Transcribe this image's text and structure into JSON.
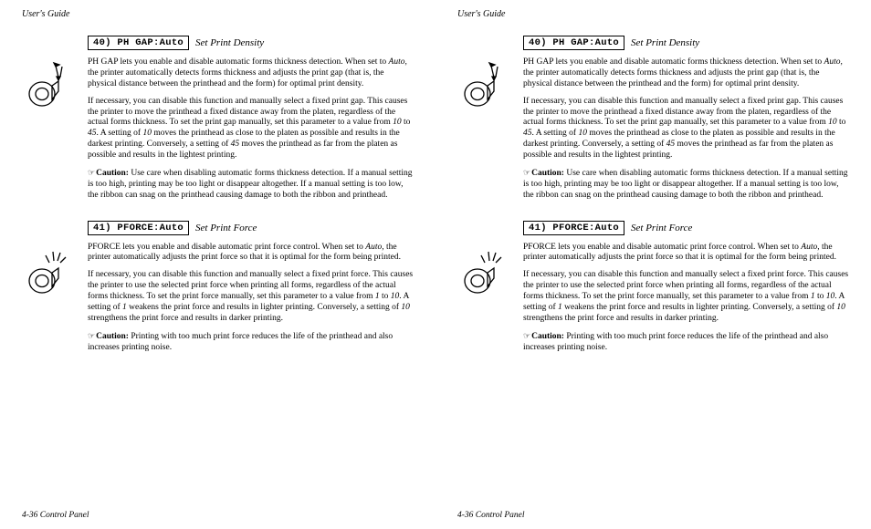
{
  "header": "User's Guide",
  "footer": "4-36 Control Panel",
  "sections": [
    {
      "box": "40) PH GAP:Auto",
      "title": "Set Print Density",
      "p1a": "PH GAP lets you enable and disable automatic forms thickness detection. When set to ",
      "p1_it1": "Auto",
      "p1b": ", the printer automatically detects forms thickness and adjusts the print gap (that is, the physical distance between the printhead and the form) for optimal print density.",
      "p2a": "If necessary, you can disable this function and manually select a fixed print gap.  This causes the printer to move the printhead a fixed distance away from the platen, regardless of the actual forms thickness.  To set the print gap manually, set this parameter to a value from ",
      "p2_it1": "10",
      "p2b": " to ",
      "p2_it2": "45",
      "p2c": ".  A setting of ",
      "p2_it3": "10",
      "p2d": " moves the printhead as close to the platen as possible and results in the darkest printing.  Conversely, a setting of ",
      "p2_it4": "45",
      "p2e": " moves the printhead as far from the platen as possible and results in the lightest printing.",
      "caution_label": "Caution:",
      "caution_text": "  Use care when disabling automatic forms thickness detection.  If a manual setting is too high, printing may be too light or disappear altogether.  If a manual setting is too low, the ribbon can snag on the printhead causing damage to both the ribbon and printhead."
    },
    {
      "box": "41) PFORCE:Auto",
      "title": "Set Print Force",
      "p1a": "PFORCE lets you enable and disable automatic print force control. When set to ",
      "p1_it1": "Auto",
      "p1b": ", the printer automatically adjusts the print force so that it is optimal for the form being printed.",
      "p2a": "If necessary, you can disable this function and manually select a fixed print force.  This causes the printer to use the selected print force when printing all forms, regardless of the actual forms thickness.  To set the print force manually, set this parameter to a value from ",
      "p2_it1": "1",
      "p2b": " to ",
      "p2_it2": "10",
      "p2c": ".  A setting of ",
      "p2_it3": "1",
      "p2d": " weakens the print force and results in lighter printing.  Conversely, a setting of ",
      "p2_it4": "10",
      "p2e": " strengthens the print force and results in darker printing.",
      "caution_label": "Caution:",
      "caution_text": "  Printing with too much print force reduces the life of the printhead and also increases printing noise."
    }
  ],
  "icons": {
    "ph_gap": "printer-gap-icon",
    "pforce": "printer-force-icon"
  },
  "colors": {
    "text": "#000000",
    "bg": "#ffffff",
    "border": "#000000"
  }
}
